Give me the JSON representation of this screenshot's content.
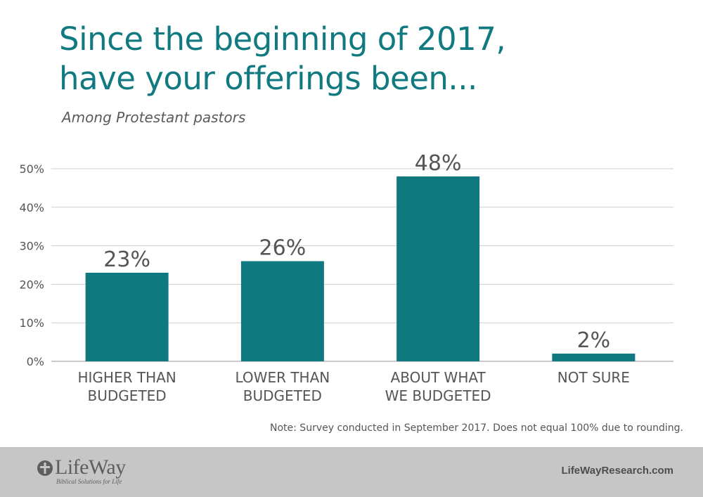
{
  "chart_data": {
    "type": "bar",
    "title_lines": [
      "Since the beginning of 2017,",
      "have your offerings been..."
    ],
    "subtitle": "Among Protestant pastors",
    "categories": [
      [
        "HIGHER THAN",
        "BUDGETED"
      ],
      [
        "LOWER THAN",
        "BUDGETED"
      ],
      [
        "ABOUT WHAT",
        "WE BUDGETED"
      ],
      [
        "NOT SURE"
      ]
    ],
    "values": [
      23,
      26,
      48,
      2
    ],
    "data_labels": [
      "23%",
      "26%",
      "48%",
      "2%"
    ],
    "y_ticks": [
      "0%",
      "10%",
      "20%",
      "30%",
      "40%",
      "50%"
    ],
    "ylim": [
      0,
      50
    ],
    "grid": true,
    "bar_color": "#0e7a80"
  },
  "note": "Note: Survey conducted in September 2017. Does not equal 100% due to rounding.",
  "footer": {
    "logo_text": "LifeWay",
    "logo_tagline": "Biblical Solutions for Life",
    "site": "LifeWayResearch.com",
    "background": "#c6c6c7"
  },
  "colors": {
    "title": "#117a80",
    "text": "#555555"
  }
}
